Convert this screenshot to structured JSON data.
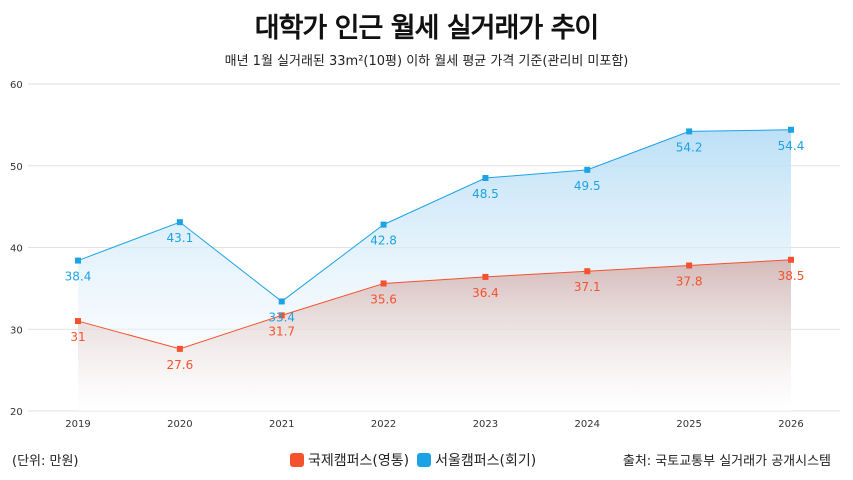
{
  "title": "대학가 인근 월세 실거래가 추이",
  "subtitle": "매년 1월 실거래된 33m²(10평) 이하 월세 평균 가격 기준(관리비 미포함)",
  "unit": "(단위: 만원)",
  "source": "출처: 국토교통부 실거래가 공개시스템",
  "chart_data": {
    "type": "area",
    "title": "대학가 인근 월세 실거래가 추이",
    "x": [
      "2019",
      "2020",
      "2021",
      "2022",
      "2023",
      "2024",
      "2025",
      "2026"
    ],
    "ylim": [
      20,
      60
    ],
    "yticks": [
      20,
      30,
      40,
      50,
      60
    ],
    "grid": true,
    "legend_position": "bottom-center",
    "series": [
      {
        "name": "국제캠퍼스(영통)",
        "color": "#f4522e",
        "values": [
          31,
          27.6,
          31.7,
          35.6,
          36.4,
          37.1,
          37.8,
          38.5
        ],
        "labels": [
          "31",
          "27.6",
          "31.7",
          "35.6",
          "36.4",
          "37.1",
          "37.8",
          "38.5"
        ]
      },
      {
        "name": "서울캠퍼스(회기)",
        "color": "#1ca3e6",
        "values": [
          38.4,
          43.1,
          33.4,
          42.8,
          48.5,
          49.5,
          54.2,
          54.4
        ],
        "labels": [
          "38.4",
          "43.1",
          "33.4",
          "42.8",
          "48.5",
          "49.5",
          "54.2",
          "54.4"
        ]
      }
    ]
  }
}
